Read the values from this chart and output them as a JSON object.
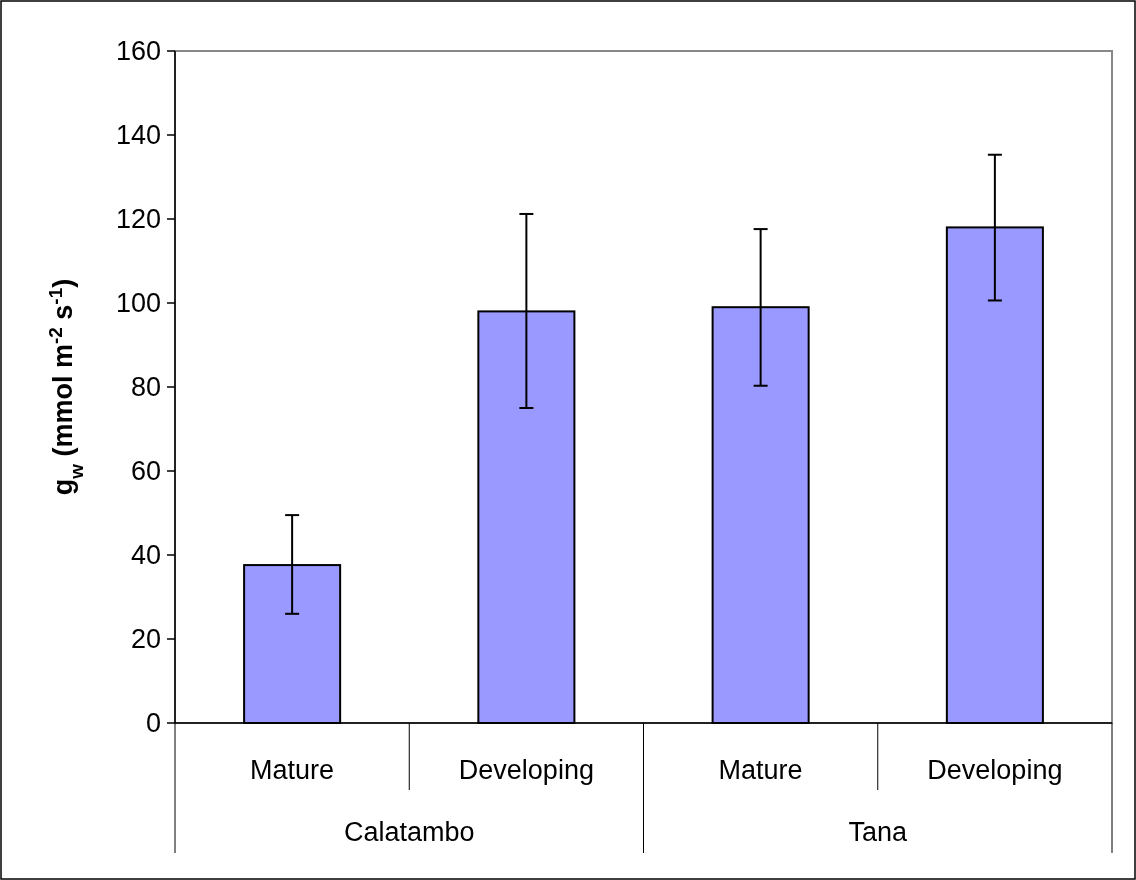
{
  "chart_data": {
    "type": "bar",
    "ylabel": "g$_{w}$ (mmol m$^{-2}$ s$^{-1}$)",
    "categories": [
      "Mature",
      "Developing",
      "Mature",
      "Developing"
    ],
    "annotations": [
      "Calatambo",
      "Tana"
    ],
    "values": [
      37.6,
      98,
      99,
      118
    ],
    "errors": [
      [
        26,
        49.5
      ],
      [
        75,
        121.2
      ],
      [
        80.3,
        117.6
      ],
      [
        100.6,
        135.3
      ]
    ],
    "color": "#9999ff",
    "ylim": [
      0,
      160
    ],
    "yticks": [
      0,
      20,
      40,
      60,
      80,
      100,
      120,
      140,
      160
    ],
    "grid": false
  }
}
